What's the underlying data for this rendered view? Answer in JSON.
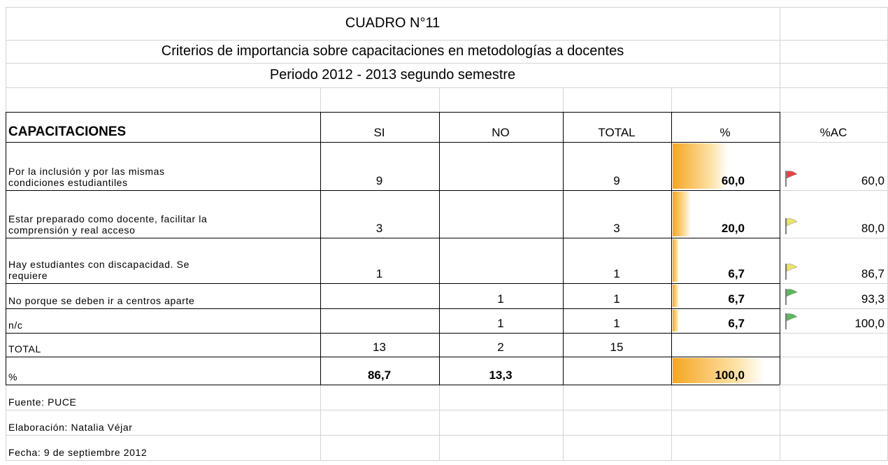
{
  "header": {
    "title": "CUADRO N°11",
    "subtitle": "Criterios de importancia sobre capacitaciones en metodologías a docentes",
    "period": "Periodo 2012 - 2013 segundo semestre"
  },
  "table": {
    "columns": [
      "CAPACITACIONES",
      "SI",
      "NO",
      "TOTAL",
      "%",
      "%AC"
    ],
    "rows": [
      {
        "label": [
          "Por la inclusión y por las mismas",
          "condiciones estudiantiles"
        ],
        "si": "9",
        "total": "9",
        "pct": 60,
        "pct_label": "60,0",
        "ac": "60,0",
        "flag": "#e8404a"
      },
      {
        "label": [
          "Estar preparado como docente, facilitar la",
          "comprensión y real acceso"
        ],
        "si": "3",
        "total": "3",
        "pct": 20,
        "pct_label": "20,0",
        "ac": "80,0",
        "flag": "#ece36a"
      },
      {
        "label": [
          "Hay estudiantes con discapacidad. Se",
          "requiere"
        ],
        "si": "1",
        "total": "1",
        "pct": 6.7,
        "pct_label": "6,7",
        "ac": "86,7",
        "flag": "#ece36a"
      },
      {
        "label": [
          "No porque se deben ir a centros aparte"
        ],
        "no": "1",
        "total": "1",
        "pct": 6.7,
        "pct_label": "6,7",
        "ac": "93,3",
        "flag": "#5cb85c"
      },
      {
        "label": [
          "n/c"
        ],
        "no": "1",
        "total": "1",
        "pct": 6.7,
        "pct_label": "6,7",
        "ac": "100,0",
        "flag": "#5cb85c"
      }
    ],
    "total_row": {
      "label": "TOTAL",
      "si": "13",
      "no": "2",
      "total": "15"
    },
    "pct_row": {
      "label": "%",
      "si": "86,7",
      "no": "13,3",
      "pct": 100,
      "pct_label": "100,0"
    }
  },
  "footer": [
    "Fuente: PUCE",
    "Elaboración: Natalia Véjar",
    "Fecha: 9 de septiembre 2012"
  ]
}
